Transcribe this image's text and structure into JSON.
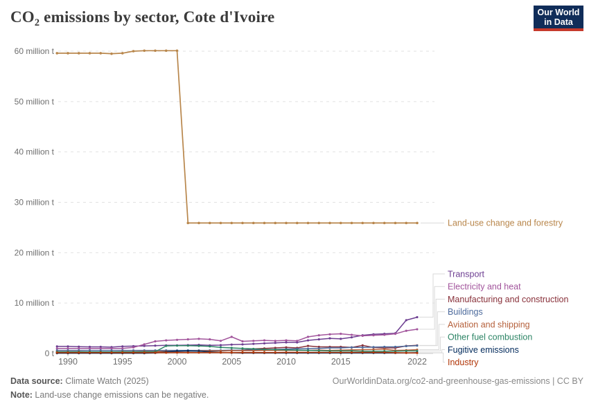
{
  "header": {
    "title_co": "CO",
    "title_sub": "2",
    "title_rest": " emissions by sector, Cote d'Ivoire"
  },
  "logo": {
    "line1": "Our World",
    "line2": "in Data",
    "bg_color": "#102D59",
    "accent_color": "#C6392B"
  },
  "footer": {
    "datasource_label": "Data source:",
    "datasource_value": " Climate Watch (2025)",
    "note_label": "Note:",
    "note_value": " Land-use change emissions can be negative.",
    "url": "OurWorldinData.org/co2-and-greenhouse-gas-emissions | CC BY"
  },
  "chart_data": {
    "type": "line",
    "title": "CO₂ emissions by sector, Cote d'Ivoire",
    "xlabel": "",
    "ylabel": "",
    "unit": "million t",
    "ylim": [
      0,
      62
    ],
    "grid": "horizontal-dashed",
    "legend_position": "right-edge-labels",
    "x": [
      1989,
      1990,
      1991,
      1992,
      1993,
      1994,
      1995,
      1996,
      1997,
      1998,
      1999,
      2000,
      2001,
      2002,
      2003,
      2004,
      2005,
      2006,
      2007,
      2008,
      2009,
      2010,
      2011,
      2012,
      2013,
      2014,
      2015,
      2016,
      2017,
      2018,
      2019,
      2020,
      2021,
      2022
    ],
    "x_ticks": [
      1990,
      1995,
      2000,
      2005,
      2010,
      2015,
      2022
    ],
    "y_ticks": [
      {
        "value": 0,
        "label": "0 t"
      },
      {
        "value": 10,
        "label": "10 million t"
      },
      {
        "value": 20,
        "label": "20 million t"
      },
      {
        "value": 30,
        "label": "30 million t"
      },
      {
        "value": 40,
        "label": "40 million t"
      },
      {
        "value": 50,
        "label": "50 million t"
      },
      {
        "value": 60,
        "label": "60 million t"
      }
    ],
    "series": [
      {
        "name": "Land-use change and forestry",
        "color": "#B8864B",
        "inline_label": true,
        "values": [
          59.6,
          59.6,
          59.6,
          59.6,
          59.6,
          59.5,
          59.6,
          60.0,
          60.1,
          60.1,
          60.1,
          60.1,
          25.9,
          25.9,
          25.9,
          25.9,
          25.9,
          25.9,
          25.9,
          25.9,
          25.9,
          25.9,
          25.9,
          25.9,
          25.9,
          25.9,
          25.9,
          25.9,
          25.9,
          25.9,
          25.9,
          25.9,
          25.9,
          25.9
        ]
      },
      {
        "name": "Transport",
        "color": "#6D3E91",
        "inline_label": false,
        "values": [
          1.4,
          1.4,
          1.35,
          1.3,
          1.3,
          1.25,
          1.4,
          1.45,
          1.5,
          1.55,
          1.6,
          1.6,
          1.65,
          1.7,
          1.6,
          1.65,
          1.75,
          1.8,
          1.9,
          2.0,
          2.1,
          2.2,
          2.2,
          2.6,
          2.8,
          3.0,
          2.9,
          3.2,
          3.6,
          3.8,
          3.9,
          4.0,
          6.6,
          7.2
        ]
      },
      {
        "name": "Electricity and heat",
        "color": "#A2559C",
        "inline_label": false,
        "values": [
          1.0,
          1.0,
          1.0,
          1.0,
          1.0,
          1.0,
          1.0,
          1.2,
          1.8,
          2.4,
          2.6,
          2.7,
          2.8,
          2.9,
          2.8,
          2.5,
          3.3,
          2.4,
          2.5,
          2.6,
          2.5,
          2.6,
          2.5,
          3.3,
          3.6,
          3.8,
          3.9,
          3.7,
          3.5,
          3.6,
          3.7,
          3.9,
          4.5,
          4.8
        ]
      },
      {
        "name": "Manufacturing and construction",
        "color": "#883039",
        "inline_label": false,
        "values": [
          0.25,
          0.25,
          0.25,
          0.25,
          0.25,
          0.25,
          0.3,
          0.3,
          0.3,
          0.35,
          0.4,
          0.4,
          0.45,
          0.5,
          0.5,
          0.55,
          0.6,
          0.65,
          0.9,
          1.0,
          1.1,
          1.2,
          1.1,
          1.5,
          1.3,
          1.3,
          1.3,
          1.2,
          1.6,
          1.2,
          1.1,
          1.1,
          1.5,
          1.6
        ]
      },
      {
        "name": "Buildings",
        "color": "#4C6A9C",
        "inline_label": false,
        "values": [
          0.6,
          0.6,
          0.6,
          0.6,
          0.6,
          0.6,
          0.6,
          0.6,
          0.6,
          0.6,
          0.6,
          0.6,
          0.6,
          0.6,
          0.6,
          0.6,
          0.65,
          0.65,
          0.7,
          0.75,
          0.8,
          0.85,
          0.9,
          0.95,
          1.0,
          1.1,
          1.1,
          1.2,
          1.2,
          1.25,
          1.3,
          1.3,
          1.45,
          1.55
        ]
      },
      {
        "name": "Aviation and shipping",
        "color": "#B5603B",
        "inline_label": false,
        "values": [
          0.35,
          0.35,
          0.35,
          0.3,
          0.3,
          0.3,
          0.35,
          0.35,
          0.4,
          0.4,
          0.4,
          0.45,
          0.45,
          0.5,
          0.5,
          0.5,
          0.55,
          0.55,
          0.55,
          0.6,
          0.6,
          0.6,
          0.6,
          0.6,
          0.65,
          0.6,
          0.65,
          0.7,
          0.75,
          0.8,
          0.85,
          0.6,
          0.65,
          0.75
        ]
      },
      {
        "name": "Other fuel combustion",
        "color": "#2C8465",
        "inline_label": false,
        "values": [
          0.3,
          0.3,
          0.3,
          0.3,
          0.3,
          0.3,
          0.3,
          0.3,
          0.3,
          0.35,
          1.5,
          1.55,
          1.55,
          1.5,
          1.4,
          1.2,
          1.1,
          1.0,
          0.9,
          0.8,
          0.75,
          0.7,
          0.65,
          0.6,
          0.55,
          0.5,
          0.5,
          0.5,
          0.45,
          0.45,
          0.45,
          0.45,
          0.5,
          0.5
        ]
      },
      {
        "name": "Fugitive emissions",
        "color": "#00295B",
        "inline_label": false,
        "values": [
          0.05,
          0.05,
          0.05,
          0.05,
          0.05,
          0.05,
          0.05,
          0.05,
          0.05,
          0.1,
          0.3,
          0.45,
          0.5,
          0.45,
          0.3,
          0.2,
          0.15,
          0.1,
          0.1,
          0.1,
          0.1,
          0.1,
          0.1,
          0.1,
          0.1,
          0.1,
          0.1,
          0.1,
          0.1,
          0.1,
          0.1,
          0.1,
          0.12,
          0.15
        ]
      },
      {
        "name": "Industry",
        "color": "#B13507",
        "inline_label": false,
        "values": [
          0.15,
          0.15,
          0.15,
          0.15,
          0.15,
          0.15,
          0.15,
          0.15,
          0.15,
          0.15,
          0.15,
          0.18,
          0.18,
          0.18,
          0.18,
          0.18,
          0.18,
          0.18,
          0.18,
          0.18,
          0.18,
          0.2,
          0.2,
          0.2,
          0.2,
          0.2,
          0.2,
          0.2,
          0.2,
          0.2,
          0.2,
          0.15,
          0.12,
          0.1
        ]
      }
    ]
  }
}
